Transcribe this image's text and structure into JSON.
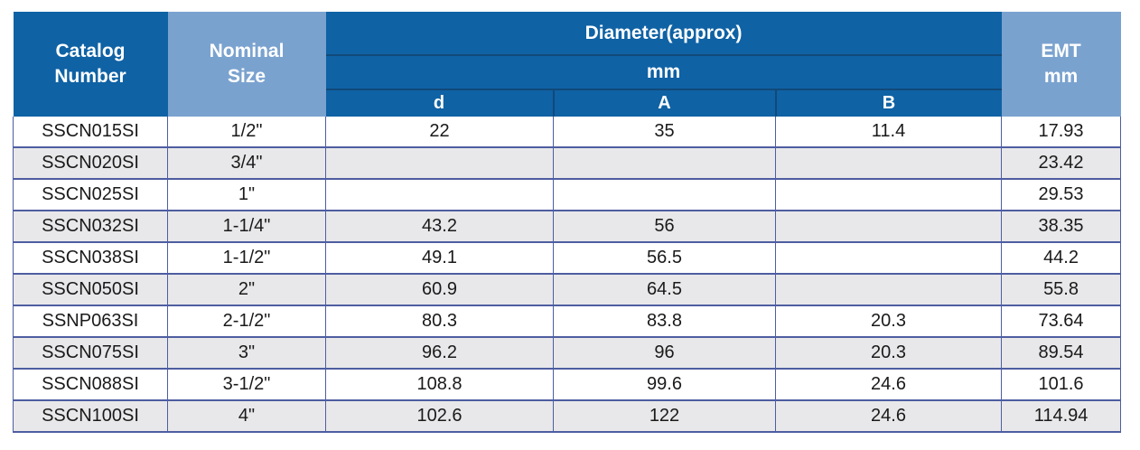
{
  "colors": {
    "header_dark_blue": "#0f62a4",
    "header_light_blue": "#7aa2cf",
    "row_alternate_gray": "#e8e8ea",
    "grid_line_navy": "#4e5da1",
    "header_text": "#ffffff",
    "body_text": "#1a1a1a"
  },
  "table": {
    "header": {
      "catalog": "Catalog Number",
      "nominal": "Nominal Size",
      "diameter_group": "Diameter(approx)",
      "diameter_unit": "mm",
      "sub_d": "d",
      "sub_a": "A",
      "sub_b": "B",
      "emt": "EMT mm"
    },
    "rows": [
      {
        "catalog": "SSCN015SI",
        "size": "1/2\"",
        "d": "22",
        "a": "35",
        "b": "11.4",
        "emt": "17.93"
      },
      {
        "catalog": "SSCN020SI",
        "size": "3/4\"",
        "d": "",
        "a": "",
        "b": "",
        "emt": "23.42"
      },
      {
        "catalog": "SSCN025SI",
        "size": "1\"",
        "d": "",
        "a": "",
        "b": "",
        "emt": "29.53"
      },
      {
        "catalog": "SSCN032SI",
        "size": "1-1/4\"",
        "d": "43.2",
        "a": "56",
        "b": "",
        "emt": "38.35"
      },
      {
        "catalog": "SSCN038SI",
        "size": "1-1/2\"",
        "d": "49.1",
        "a": "56.5",
        "b": "",
        "emt": "44.2"
      },
      {
        "catalog": "SSCN050SI",
        "size": "2\"",
        "d": "60.9",
        "a": "64.5",
        "b": "",
        "emt": "55.8"
      },
      {
        "catalog": "SSNP063SI",
        "size": "2-1/2\"",
        "d": "80.3",
        "a": "83.8",
        "b": "20.3",
        "emt": "73.64"
      },
      {
        "catalog": "SSCN075SI",
        "size": "3\"",
        "d": "96.2",
        "a": "96",
        "b": "20.3",
        "emt": "89.54"
      },
      {
        "catalog": "SSCN088SI",
        "size": "3-1/2\"",
        "d": "108.8",
        "a": "99.6",
        "b": "24.6",
        "emt": "101.6"
      },
      {
        "catalog": "SSCN100SI",
        "size": "4\"",
        "d": "102.6",
        "a": "122",
        "b": "24.6",
        "emt": "114.94"
      }
    ]
  }
}
